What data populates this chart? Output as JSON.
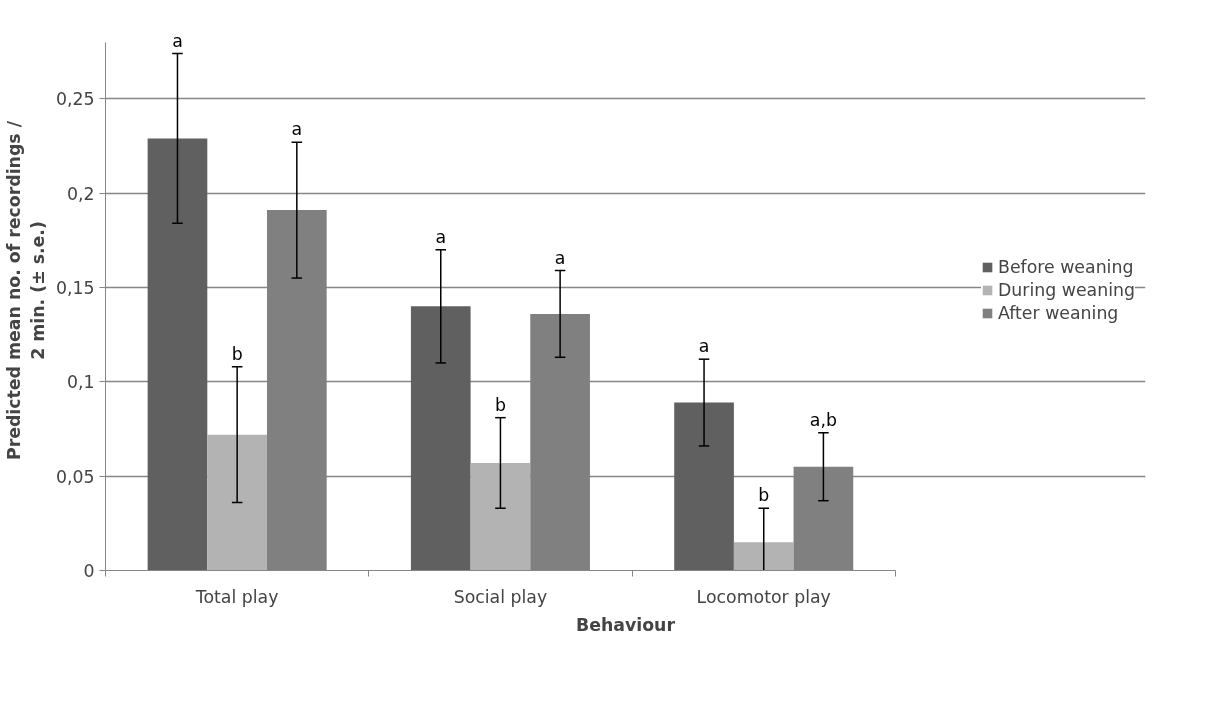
{
  "chart_data": {
    "type": "bar",
    "xlabel": "Behaviour",
    "ylabel": "Predicted mean no. of recordings / 2 min. (± s.e.)",
    "categories": [
      "Total play",
      "Social play",
      "Locomotor play"
    ],
    "series": [
      {
        "name": "Before weaning",
        "color": "#606060",
        "values": [
          0.229,
          0.14,
          0.089
        ],
        "errors": [
          0.045,
          0.03,
          0.023
        ]
      },
      {
        "name": "During weaning",
        "color": "#b3b3b3",
        "values": [
          0.072,
          0.057,
          0.015
        ],
        "errors": [
          0.036,
          0.024,
          0.018
        ]
      },
      {
        "name": "After weaning",
        "color": "#808080",
        "values": [
          0.191,
          0.136,
          0.055
        ],
        "errors": [
          0.036,
          0.023,
          0.018
        ]
      }
    ],
    "annotations": [
      "a",
      "b",
      "a",
      "a",
      "b",
      "a",
      "a",
      "b",
      "a,b"
    ],
    "ylim": [
      0,
      0.28
    ],
    "yticks": [
      {
        "value": 0,
        "label": "0"
      },
      {
        "value": 0.05,
        "label": "0,05"
      },
      {
        "value": 0.1,
        "label": "0,1"
      },
      {
        "value": 0.15,
        "label": "0,15"
      },
      {
        "value": 0.2,
        "label": "0,2"
      },
      {
        "value": 0.25,
        "label": "0,25"
      }
    ],
    "grid": "y",
    "legend": "right"
  }
}
